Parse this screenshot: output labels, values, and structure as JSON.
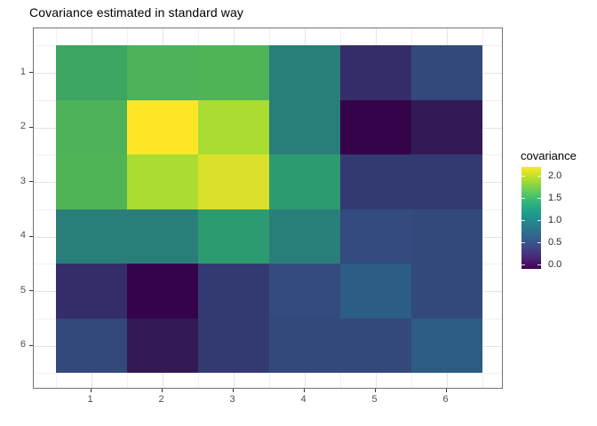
{
  "figure": {
    "title": "Covariance estimated in standard way"
  },
  "x_axis": {
    "tick_labels": [
      "1",
      "2",
      "3",
      "4",
      "5",
      "6"
    ]
  },
  "y_axis": {
    "tick_labels": [
      "1",
      "2",
      "3",
      "4",
      "5",
      "6"
    ]
  },
  "legend": {
    "title": "covariance",
    "tick_labels": [
      "2.0",
      "1.5",
      "1.0",
      "0.5",
      "0.0"
    ],
    "tick_values": [
      2.0,
      1.5,
      1.0,
      0.5,
      0.0
    ],
    "gradient_stops_top_to_bottom": [
      "#fde725",
      "#b5de2b",
      "#6ece58",
      "#35b779",
      "#1f9e89",
      "#26828e",
      "#31688e",
      "#3e4a89",
      "#482878",
      "#440154"
    ]
  },
  "heatmap": {
    "cell_colors": [
      [
        "#3CA561",
        "#4DB25A",
        "#50B456",
        "#2A7E79",
        "#342D69",
        "#33497B"
      ],
      [
        "#4DB25A",
        "#FDE725",
        "#AADC32",
        "#2A7E79",
        "#340349",
        "#331956"
      ],
      [
        "#50B456",
        "#AADC32",
        "#DBE02B",
        "#2D9B70",
        "#333A72",
        "#333A72"
      ],
      [
        "#2A7E79",
        "#2A7E79",
        "#2D9B70",
        "#2A7E79",
        "#334B7E",
        "#33497B"
      ],
      [
        "#342D69",
        "#340349",
        "#333A72",
        "#334B7E",
        "#2C5D84",
        "#33497B"
      ],
      [
        "#33497B",
        "#331956",
        "#333A72",
        "#33497B",
        "#33497B",
        "#2D5C83"
      ]
    ]
  },
  "style": {
    "background": "#ffffff",
    "panel_border": "#737373",
    "grid_major": "#e4e4e4",
    "grid_minor": "#f0f0f0",
    "axis_tick_color": "#333333",
    "tick_label_color": "#4d4d4d",
    "title_color": "#000000"
  },
  "chart_data": {
    "type": "heatmap",
    "title": "Covariance estimated in standard way",
    "xlabel": "",
    "ylabel": "",
    "x": [
      1,
      2,
      3,
      4,
      5,
      6
    ],
    "y": [
      1,
      2,
      3,
      4,
      5,
      6
    ],
    "y_orientation": "row 1 at top, row 6 at bottom",
    "values_by_row": [
      [
        1.35,
        1.45,
        1.5,
        0.95,
        0.25,
        0.5
      ],
      [
        1.45,
        2.2,
        1.8,
        0.95,
        -0.05,
        0.1
      ],
      [
        1.5,
        1.8,
        2.0,
        1.15,
        0.4,
        0.4
      ],
      [
        0.95,
        0.95,
        1.15,
        0.95,
        0.55,
        0.5
      ],
      [
        0.25,
        -0.05,
        0.4,
        0.55,
        0.7,
        0.5
      ],
      [
        0.5,
        0.1,
        0.4,
        0.5,
        0.5,
        0.7
      ]
    ],
    "legend_title": "covariance",
    "legend_ticks": [
      0.0,
      0.5,
      1.0,
      1.5,
      2.0
    ],
    "colorscale": "viridis",
    "color_domain": [
      -0.1,
      2.2
    ],
    "grid": true,
    "legend_position": "right"
  }
}
